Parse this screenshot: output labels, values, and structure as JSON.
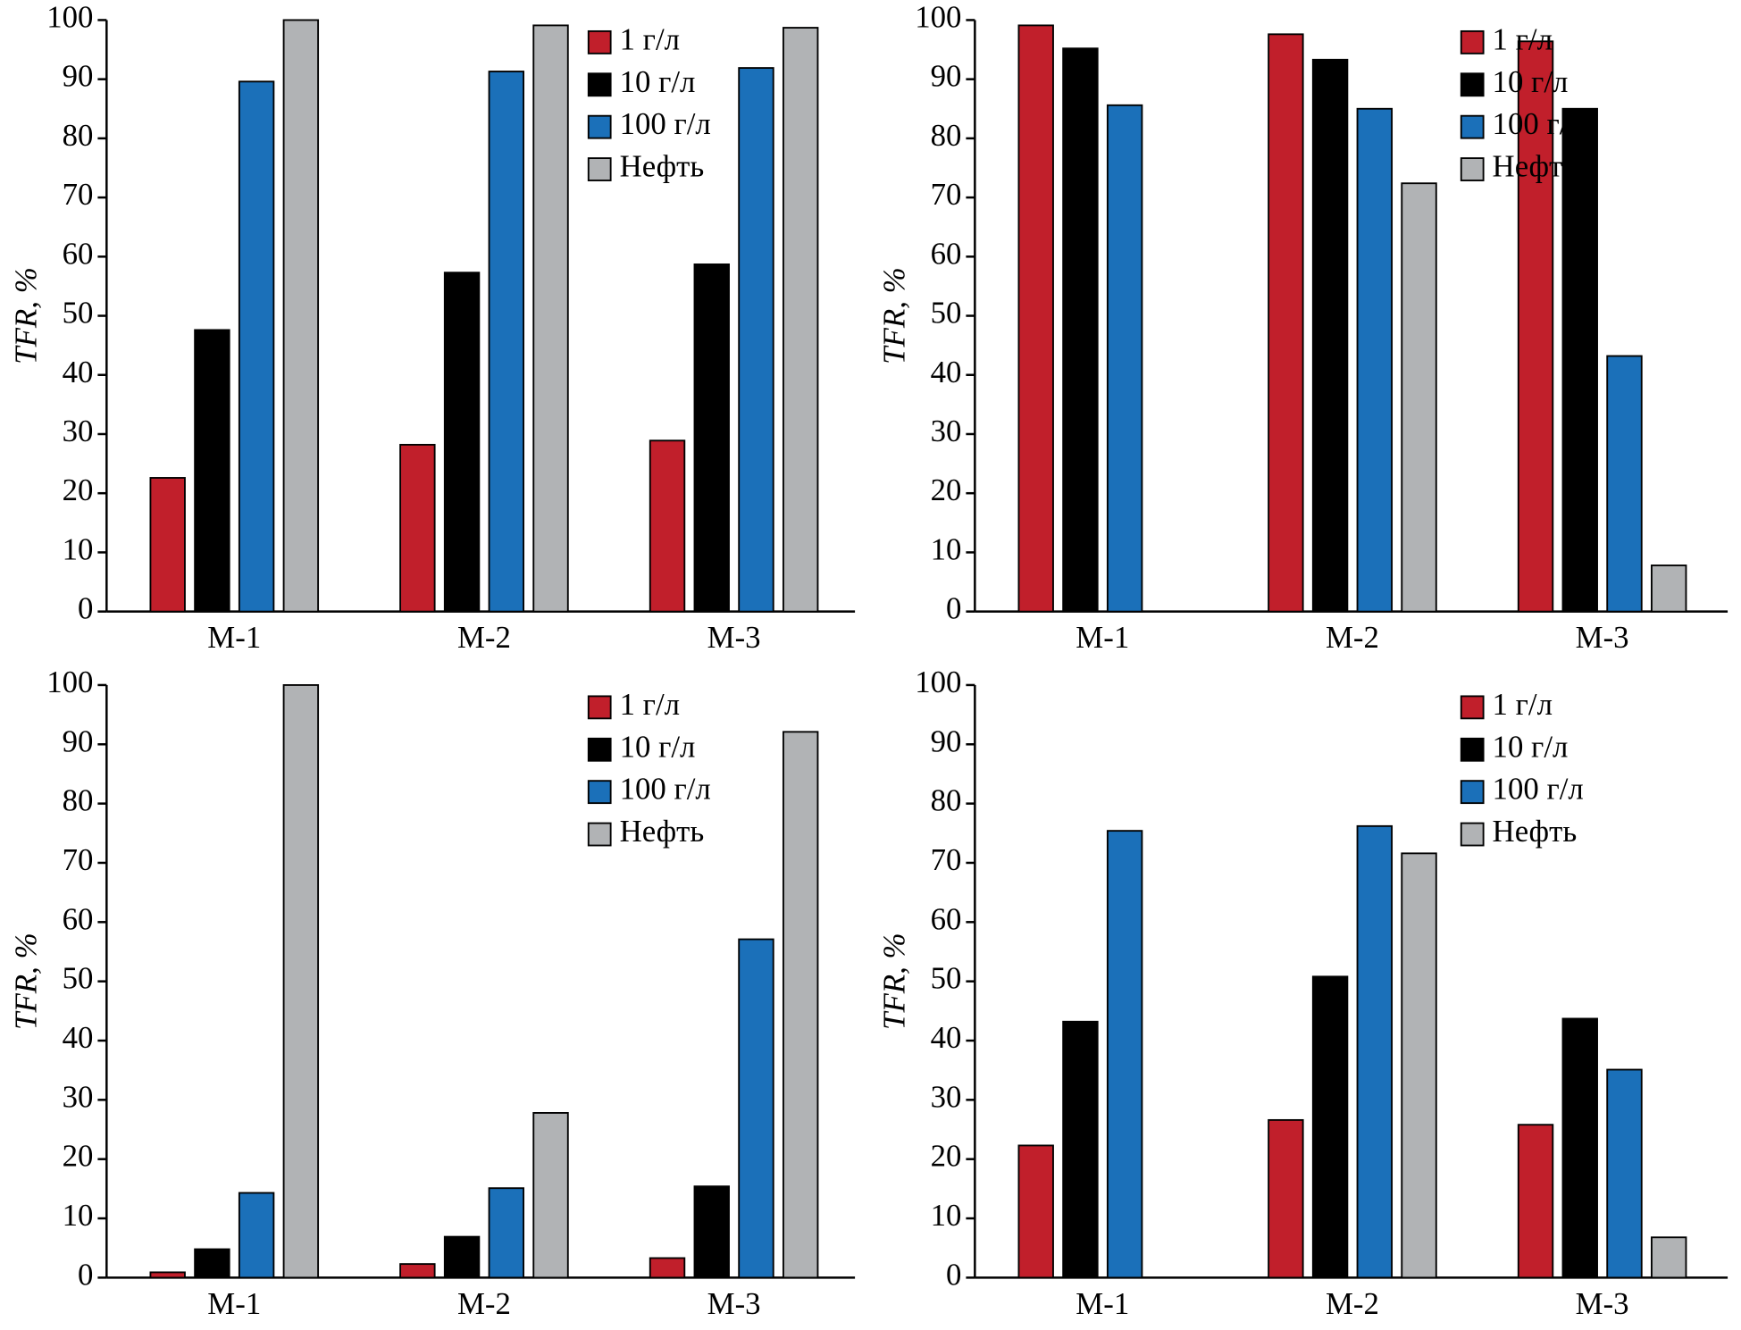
{
  "chart_data": [
    {
      "type": "bar",
      "y_label": "TFR, %",
      "categories": [
        "M-1",
        "M-2",
        "M-3"
      ],
      "ylim": [
        0,
        100
      ],
      "yticks": [
        0,
        10,
        20,
        30,
        40,
        50,
        60,
        70,
        80,
        90,
        100
      ],
      "legend": "upper right",
      "series": [
        {
          "name": "1 г/л",
          "color": "#c11f2b",
          "values": [
            22.6,
            28.2,
            28.9
          ]
        },
        {
          "name": "10 г/л",
          "color": "#000000",
          "values": [
            47.6,
            57.3,
            58.7
          ]
        },
        {
          "name": "100 г/л",
          "color": "#1b70b9",
          "values": [
            89.6,
            91.3,
            91.9
          ]
        },
        {
          "name": "Нефть",
          "color": "#b1b3b5",
          "values": [
            100,
            99.1,
            98.7
          ]
        }
      ]
    },
    {
      "type": "bar",
      "y_label": "TFR, %",
      "categories": [
        "M-1",
        "M-2",
        "M-3"
      ],
      "ylim": [
        0,
        100
      ],
      "yticks": [
        0,
        10,
        20,
        30,
        40,
        50,
        60,
        70,
        80,
        90,
        100
      ],
      "legend": "upper right",
      "series": [
        {
          "name": "1 г/л",
          "color": "#c11f2b",
          "values": [
            99.1,
            97.6,
            96.4
          ]
        },
        {
          "name": "10 г/л",
          "color": "#000000",
          "values": [
            95.2,
            93.3,
            85.0
          ]
        },
        {
          "name": "100 г/л",
          "color": "#1b70b9",
          "values": [
            85.6,
            85.0,
            43.2
          ]
        },
        {
          "name": "Нефть",
          "color": "#b1b3b5",
          "values": [
            null,
            72.4,
            7.8
          ]
        }
      ]
    },
    {
      "type": "bar",
      "y_label": "TFR, %",
      "categories": [
        "M-1",
        "M-2",
        "M-3"
      ],
      "ylim": [
        0,
        100
      ],
      "yticks": [
        0,
        10,
        20,
        30,
        40,
        50,
        60,
        70,
        80,
        90,
        100
      ],
      "legend": "upper right",
      "series": [
        {
          "name": "1 г/л",
          "color": "#c11f2b",
          "values": [
            0.9,
            2.3,
            3.3
          ]
        },
        {
          "name": "10 г/л",
          "color": "#000000",
          "values": [
            4.8,
            6.9,
            15.4
          ]
        },
        {
          "name": "100 г/л",
          "color": "#1b70b9",
          "values": [
            14.3,
            15.1,
            57.1
          ]
        },
        {
          "name": "Нефть",
          "color": "#b1b3b5",
          "values": [
            100,
            27.8,
            92.1
          ]
        }
      ]
    },
    {
      "type": "bar",
      "y_label": "TFR, %",
      "categories": [
        "M-1",
        "M-2",
        "M-3"
      ],
      "ylim": [
        0,
        100
      ],
      "yticks": [
        0,
        10,
        20,
        30,
        40,
        50,
        60,
        70,
        80,
        90,
        100
      ],
      "legend": "upper right",
      "series": [
        {
          "name": "1 г/л",
          "color": "#c11f2b",
          "values": [
            22.3,
            26.6,
            25.8
          ]
        },
        {
          "name": "10 г/л",
          "color": "#000000",
          "values": [
            43.2,
            50.8,
            43.7
          ]
        },
        {
          "name": "100 г/л",
          "color": "#1b70b9",
          "values": [
            75.4,
            76.2,
            35.1
          ]
        },
        {
          "name": "Нефть",
          "color": "#b1b3b5",
          "values": [
            null,
            71.6,
            6.8
          ]
        }
      ]
    }
  ]
}
